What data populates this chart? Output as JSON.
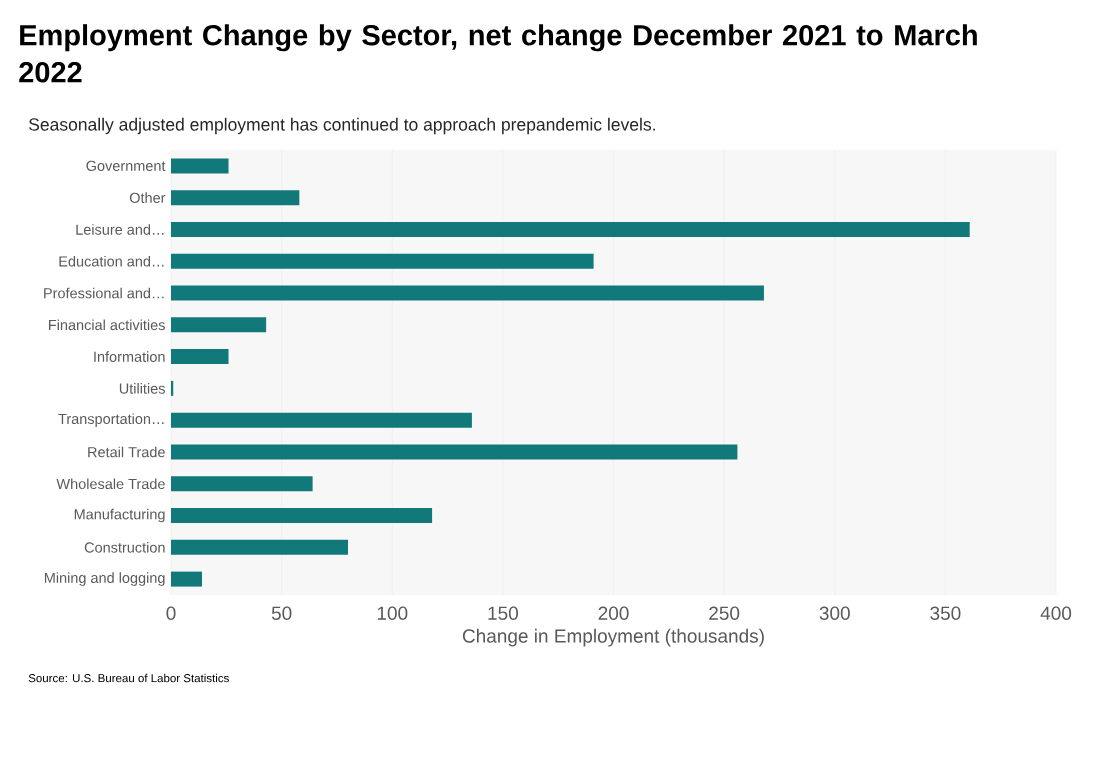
{
  "chart_data": {
    "type": "bar",
    "orientation": "horizontal",
    "title": "Employment Change by Sector, net change December 2021 to March 2022",
    "subtitle": "Seasonally adjusted employment has continued to approach prepandemic levels.",
    "xlabel": "Change in Employment (thousands)",
    "annotations": [
      "Source: U.S. Bureau of Labor Statistics"
    ],
    "categories": [
      "Government",
      "Other",
      "Leisure and…",
      "Education and…",
      "Professional and…",
      "Financial activities",
      "Information",
      "Utilities",
      "Transportation…",
      "Retail Trade",
      "Wholesale Trade",
      "Manufacturing",
      "Construction",
      "Mining and logging"
    ],
    "values": [
      26,
      58,
      361,
      191,
      268,
      43,
      26,
      1,
      136,
      256,
      64,
      118,
      80,
      14
    ],
    "color": "#11797a",
    "xlim": [
      0,
      400
    ],
    "xticks": [
      0,
      50,
      100,
      150,
      200,
      250,
      300,
      350,
      400
    ],
    "grid": "x"
  }
}
